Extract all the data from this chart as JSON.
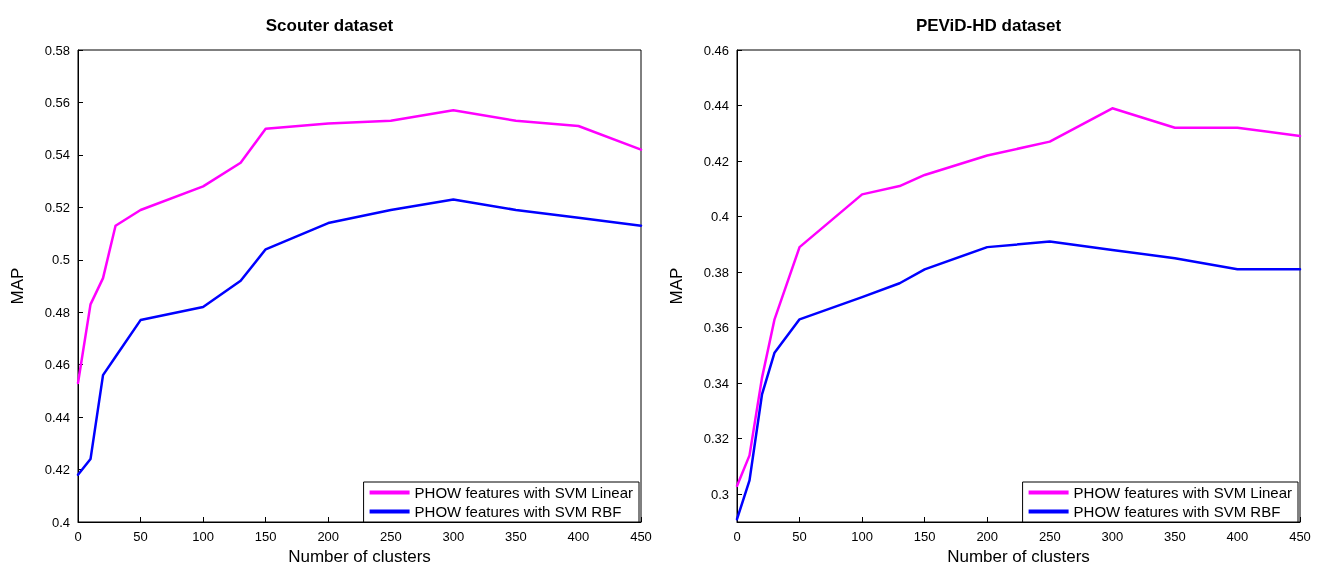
{
  "chart_data": [
    {
      "type": "line",
      "title": "Scouter dataset",
      "xlabel": "Number of clusters",
      "ylabel": "MAP",
      "x": [
        0,
        10,
        20,
        30,
        50,
        100,
        130,
        150,
        200,
        250,
        300,
        350,
        400,
        450
      ],
      "series": [
        {
          "name": "PHOW features with SVM Linear",
          "color": "#ff00ff",
          "values": [
            0.453,
            0.483,
            0.493,
            0.513,
            0.519,
            0.528,
            0.537,
            0.55,
            0.552,
            0.553,
            0.557,
            0.553,
            0.551,
            0.542
          ]
        },
        {
          "name": "PHOW features with SVM RBF",
          "color": "#0000ff",
          "values": [
            0.418,
            0.424,
            0.456,
            0.463,
            0.477,
            0.482,
            0.492,
            0.504,
            0.514,
            0.519,
            0.523,
            0.519,
            0.516,
            0.513
          ]
        }
      ],
      "xlim": [
        0,
        450
      ],
      "xticks": [
        0,
        50,
        100,
        150,
        200,
        250,
        300,
        350,
        400,
        450
      ],
      "ylim": [
        0.4,
        0.58
      ],
      "yticks": [
        0.4,
        0.42,
        0.44,
        0.46,
        0.48,
        0.5,
        0.52,
        0.54,
        0.56,
        0.58
      ],
      "grid": false,
      "legend": "bottom right",
      "marker": "none",
      "line_style": "solid"
    },
    {
      "type": "line",
      "title": "PEViD-HD dataset",
      "xlabel": "Number of clusters",
      "ylabel": "MAP",
      "x": [
        0,
        10,
        20,
        30,
        50,
        100,
        130,
        150,
        200,
        250,
        300,
        350,
        400,
        450
      ],
      "series": [
        {
          "name": "PHOW features with SVM Linear",
          "color": "#ff00ff",
          "values": [
            0.303,
            0.314,
            0.342,
            0.363,
            0.389,
            0.408,
            0.411,
            0.415,
            0.422,
            0.427,
            0.439,
            0.432,
            0.432,
            0.429
          ]
        },
        {
          "name": "PHOW features with SVM RBF",
          "color": "#0000ff",
          "values": [
            0.291,
            0.305,
            0.336,
            0.351,
            0.363,
            0.371,
            0.376,
            0.381,
            0.389,
            0.391,
            0.388,
            0.385,
            0.381,
            0.381
          ]
        }
      ],
      "xlim": [
        0,
        450
      ],
      "xticks": [
        0,
        50,
        100,
        150,
        200,
        250,
        300,
        350,
        400,
        450
      ],
      "ylim": [
        0.29,
        0.46
      ],
      "yticks": [
        0.3,
        0.32,
        0.34,
        0.36,
        0.38,
        0.4,
        0.42,
        0.44,
        0.46
      ],
      "grid": false,
      "legend": "bottom right",
      "marker": "none",
      "line_style": "solid"
    }
  ]
}
